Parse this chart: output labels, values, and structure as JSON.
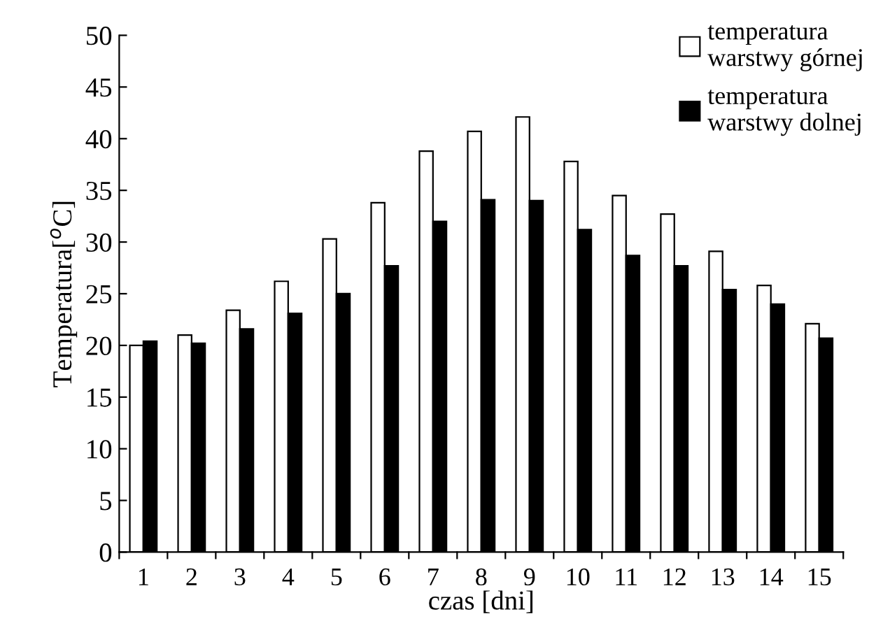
{
  "chart_data": {
    "type": "bar",
    "xlabel": "czas [dni]",
    "ylabel": "Temperatura[$^{o}$C]",
    "categories": [
      "1",
      "2",
      "3",
      "4",
      "5",
      "6",
      "7",
      "8",
      "9",
      "10",
      "11",
      "12",
      "13",
      "14",
      "15"
    ],
    "series": [
      {
        "name": "temperatura\nwarstwy górnej",
        "color": "#ffffff",
        "values": [
          20,
          21,
          23.4,
          26.2,
          30.3,
          33.8,
          38.8,
          40.7,
          42.1,
          37.8,
          34.5,
          32.7,
          29.1,
          25.8,
          22.1
        ]
      },
      {
        "name": "temperatura\nwarstwy dolnej",
        "color": "#000000",
        "values": [
          20.4,
          20.2,
          21.6,
          23.1,
          25.0,
          27.7,
          32.0,
          34.1,
          34.0,
          31.2,
          28.7,
          27.7,
          25.4,
          24.0,
          20.7
        ]
      }
    ],
    "ylim": [
      0,
      50
    ],
    "yticks": [
      0,
      5,
      10,
      15,
      20,
      25,
      30,
      35,
      40,
      45,
      50
    ],
    "grid": false,
    "legend": "top right"
  }
}
